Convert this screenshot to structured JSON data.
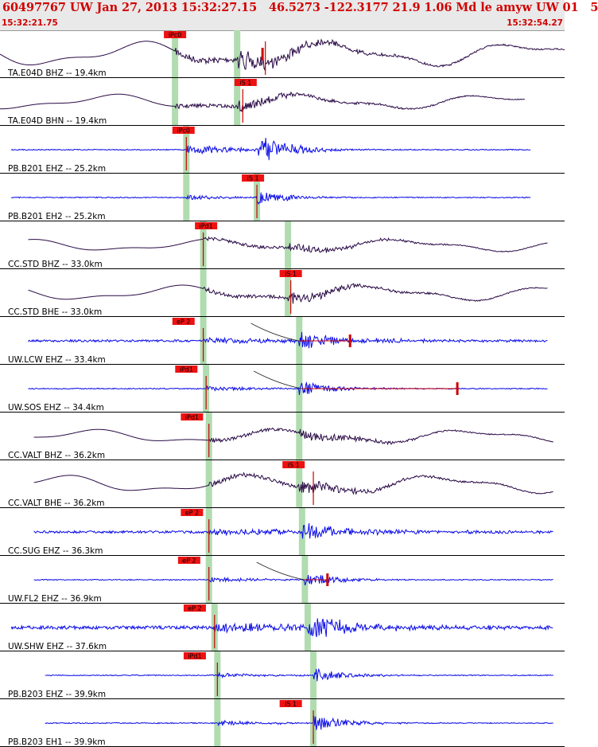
{
  "header": {
    "title": "60497767 UW Jan 27, 2013 15:32:27.15   46.5273 -122.3177 21.9 1.06 Md le amyw UW 01   5",
    "start_time": "15:32:21.75",
    "end_time": "15:32:54.27"
  },
  "colors": {
    "pick_box": "#ee1111",
    "window": "#b0dcb0",
    "trace_dark": "#2a0a46",
    "trace_blue": "#0a0ae8",
    "synthetic": "#cc0000"
  },
  "panels": [
    {
      "label": "TA.E04D BHZ -- 19.4km",
      "color": "trace_dark",
      "kind": "long",
      "amp": 0.9,
      "start": 0,
      "end": 1,
      "picks": [
        {
          "text": "iPc0",
          "t": 0.31
        }
      ],
      "windows": [
        0.31,
        0.42
      ],
      "marker": 0.47,
      "mark": 0.465
    },
    {
      "label": "TA.E04D BHN -- 19.4km",
      "color": "trace_dark",
      "kind": "long",
      "amp": 0.55,
      "start": 0,
      "end": 0.93,
      "picks": [
        {
          "text": "iS 1",
          "t": 0.435
        }
      ],
      "windows": [
        0.31,
        0.42
      ],
      "marker": 0.43
    },
    {
      "label": "PB.B201 EHZ -- 25.2km",
      "color": "trace_blue",
      "kind": "quake",
      "amp": 0.8,
      "start": 0.02,
      "end": 0.94,
      "picks": [
        {
          "text": "iPc0",
          "t": 0.325
        }
      ],
      "windows": [
        0.33
      ],
      "marker": 0.33
    },
    {
      "label": "PB.B201 EH2 -- 25.2km",
      "color": "trace_blue",
      "kind": "quake",
      "amp": 0.35,
      "start": 0.02,
      "end": 0.94,
      "picks": [
        {
          "text": "iS 1",
          "t": 0.448
        }
      ],
      "windows": [
        0.33,
        0.455
      ],
      "marker": 0.455
    },
    {
      "label": "CC.STD BHZ -- 33.0km",
      "color": "trace_dark",
      "kind": "long",
      "amp": 0.45,
      "start": 0.05,
      "end": 0.97,
      "picks": [
        {
          "text": "iPd1",
          "t": 0.365
        }
      ],
      "windows": [
        0.36,
        0.51
      ],
      "marker": 0.36
    },
    {
      "label": "CC.STD BHE -- 33.0km",
      "color": "trace_dark",
      "kind": "long",
      "amp": 0.55,
      "start": 0.05,
      "end": 0.97,
      "picks": [
        {
          "text": "iS 1",
          "t": 0.515
        }
      ],
      "windows": [
        0.36,
        0.51
      ],
      "marker": 0.515
    },
    {
      "label": "UW.LCW EHZ -- 33.4km",
      "color": "trace_blue",
      "kind": "noisy",
      "amp": 0.45,
      "start": 0.05,
      "end": 0.97,
      "picks": [
        {
          "text": "eP 2",
          "t": 0.325
        }
      ],
      "windows": [
        0.36,
        0.53
      ],
      "marker": 0.36,
      "synth": true,
      "mark": 0.62
    },
    {
      "label": "UW.SOS EHZ -- 34.4km",
      "color": "trace_blue",
      "kind": "quake",
      "amp": 0.4,
      "start": 0.05,
      "end": 0.97,
      "picks": [
        {
          "text": "iPd1",
          "t": 0.33
        }
      ],
      "windows": [
        0.365,
        0.53
      ],
      "marker": 0.365,
      "synth": true,
      "mark": 0.81
    },
    {
      "label": "CC.VALT BHZ -- 36.2km",
      "color": "trace_dark",
      "kind": "long",
      "amp": 0.5,
      "start": 0.06,
      "end": 0.98,
      "picks": [
        {
          "text": "iPd1",
          "t": 0.34
        }
      ],
      "windows": [
        0.37,
        0.53
      ],
      "marker": 0.37
    },
    {
      "label": "CC.VALT BHE -- 36.2km",
      "color": "trace_dark",
      "kind": "long",
      "amp": 0.65,
      "start": 0.06,
      "end": 0.98,
      "picks": [
        {
          "text": "iS 1",
          "t": 0.52
        }
      ],
      "windows": [
        0.37,
        0.53
      ],
      "marker": 0.555
    },
    {
      "label": "CC.SUG EHZ -- 36.3km",
      "color": "trace_blue",
      "kind": "noisy",
      "amp": 0.5,
      "start": 0.06,
      "end": 0.98,
      "picks": [
        {
          "text": "eP 2",
          "t": 0.34
        }
      ],
      "windows": [
        0.37,
        0.535
      ],
      "marker": 0.37
    },
    {
      "label": "UW.FL2 EHZ -- 36.9km",
      "color": "trace_blue",
      "kind": "quake",
      "amp": 0.4,
      "start": 0.06,
      "end": 0.98,
      "picks": [
        {
          "text": "eP 2",
          "t": 0.335
        }
      ],
      "windows": [
        0.37,
        0.54
      ],
      "marker": 0.37,
      "synth": true,
      "mark": 0.58
    },
    {
      "label": "UW.SHW EHZ -- 37.6km",
      "color": "trace_blue",
      "kind": "noisy",
      "amp": 0.7,
      "start": 0.02,
      "end": 0.98,
      "picks": [
        {
          "text": "eP 2",
          "t": 0.345
        }
      ],
      "windows": [
        0.38,
        0.545
      ],
      "marker": 0.38
    },
    {
      "label": "PB.B203 EHZ -- 39.9km",
      "color": "trace_blue",
      "kind": "quake",
      "amp": 0.35,
      "start": 0.08,
      "end": 0.98,
      "picks": [
        {
          "text": "iPd1",
          "t": 0.345
        }
      ],
      "windows": [
        0.385,
        0.555
      ],
      "marker": 0.385
    },
    {
      "label": "PB.B203 EH1 -- 39.9km",
      "color": "trace_blue",
      "kind": "quake",
      "amp": 0.45,
      "start": 0.08,
      "end": 0.98,
      "picks": [
        {
          "text": "iS 1",
          "t": 0.515
        }
      ],
      "windows": [
        0.385,
        0.555
      ],
      "marker": 0.555
    }
  ]
}
